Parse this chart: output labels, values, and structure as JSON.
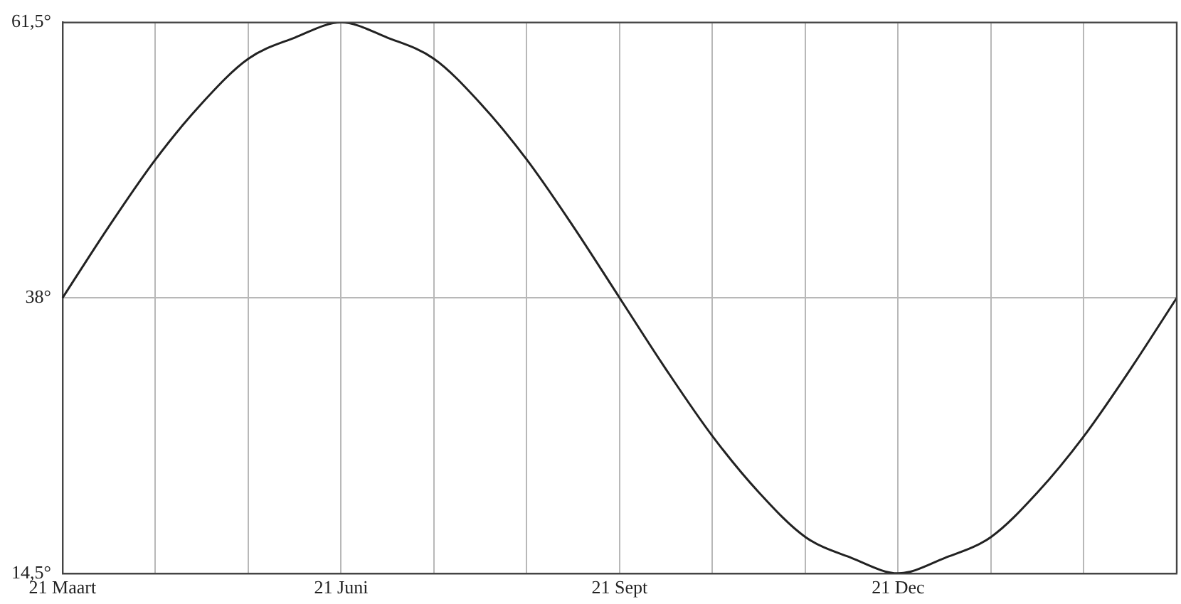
{
  "chart_data": {
    "type": "line",
    "categories": [
      "21 Maart",
      null,
      null,
      null,
      null,
      null,
      "21 Juni",
      null,
      null,
      null,
      null,
      null,
      "21 Sept",
      null,
      null,
      null,
      null,
      null,
      "21 Dec",
      null,
      null,
      null,
      null,
      null,
      null
    ],
    "series": [
      {
        "color": "#222222",
        "values": [
          38,
          44.1,
          49.8,
          54.6,
          58.4,
          60.2,
          61.5,
          60.2,
          58.4,
          54.6,
          49.8,
          44.1,
          38,
          31.9,
          26.2,
          21.4,
          17.6,
          15.8,
          14.5,
          15.8,
          17.6,
          21.4,
          26.2,
          31.9,
          38
        ]
      }
    ],
    "ylim": [
      14.5,
      61.5
    ],
    "yticks": [
      {
        "value": 14.5,
        "label": "14,5°"
      },
      {
        "value": 38,
        "label": "38°"
      },
      {
        "value": 61.5,
        "label": "61,5°"
      }
    ],
    "grid": true,
    "legend": false,
    "marker": "none",
    "line_style": "solid"
  }
}
